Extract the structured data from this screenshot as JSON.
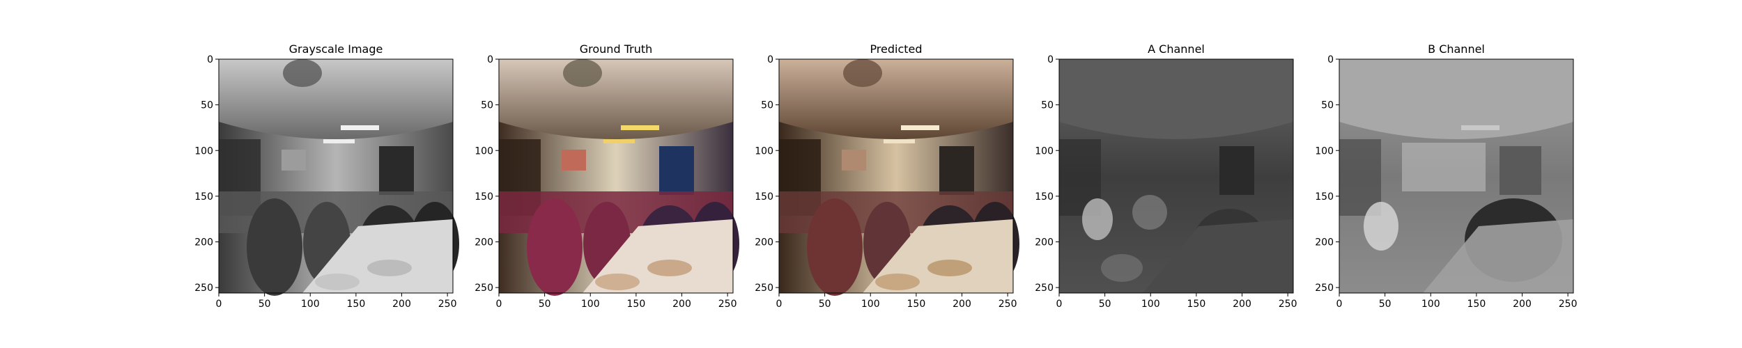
{
  "figure": {
    "panels": [
      {
        "title": "Grayscale Image",
        "kind": "grayscale",
        "color": "#8a8a8a"
      },
      {
        "title": "Ground Truth",
        "kind": "color",
        "color": "#b59a86"
      },
      {
        "title": "Predicted",
        "kind": "color",
        "color": "#a68672"
      },
      {
        "title": "A Channel",
        "kind": "channel",
        "color": "#3c3c3c"
      },
      {
        "title": "B Channel",
        "kind": "channel",
        "color": "#6e6e6e"
      }
    ],
    "x_ticks": [
      "0",
      "50",
      "100",
      "150",
      "200",
      "250"
    ],
    "y_ticks": [
      "0",
      "50",
      "100",
      "150",
      "200",
      "250"
    ],
    "axis_range": [
      0,
      256
    ]
  }
}
